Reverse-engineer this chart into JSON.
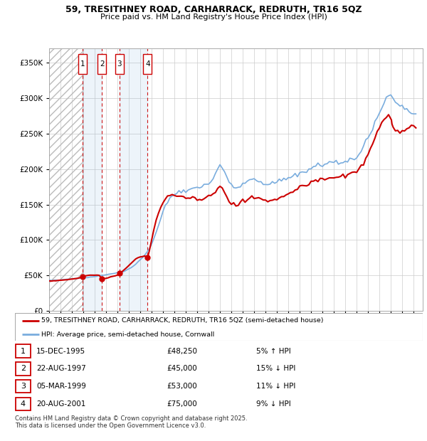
{
  "title1": "59, TRESITHNEY ROAD, CARHARRACK, REDRUTH, TR16 5QZ",
  "title2": "Price paid vs. HM Land Registry's House Price Index (HPI)",
  "sale_dates_num": [
    1995.96,
    1997.64,
    1999.18,
    2001.64
  ],
  "sale_prices": [
    48250,
    45000,
    53000,
    75000
  ],
  "sale_labels": [
    "1",
    "2",
    "3",
    "4"
  ],
  "sale_date_strs": [
    "15-DEC-1995",
    "22-AUG-1997",
    "05-MAR-1999",
    "20-AUG-2001"
  ],
  "sale_price_strs": [
    "£48,250",
    "£45,000",
    "£53,000",
    "£75,000"
  ],
  "sale_hpi_strs": [
    "5% ↑ HPI",
    "15% ↓ HPI",
    "11% ↓ HPI",
    "9% ↓ HPI"
  ],
  "legend_line1": "59, TRESITHNEY ROAD, CARHARRACK, REDRUTH, TR16 5QZ (semi-detached house)",
  "legend_line2": "HPI: Average price, semi-detached house, Cornwall",
  "footer": "Contains HM Land Registry data © Crown copyright and database right 2025.\nThis data is licensed under the Open Government Licence v3.0.",
  "red_color": "#cc0000",
  "blue_color": "#7aadde",
  "grid_color": "#cccccc",
  "ylim": [
    0,
    370000
  ],
  "yticks": [
    0,
    50000,
    100000,
    150000,
    200000,
    250000,
    300000,
    350000
  ],
  "xlim_left": 1993.0,
  "xlim_right": 2025.8,
  "xticks": [
    1993,
    1994,
    1995,
    1996,
    1997,
    1998,
    1999,
    2000,
    2001,
    2002,
    2003,
    2004,
    2005,
    2006,
    2007,
    2008,
    2009,
    2010,
    2011,
    2012,
    2013,
    2014,
    2015,
    2016,
    2017,
    2018,
    2019,
    2020,
    2021,
    2022,
    2023,
    2024,
    2025
  ],
  "hpi_data": [
    [
      1993.0,
      43500
    ],
    [
      1993.2,
      43200
    ],
    [
      1993.4,
      43000
    ],
    [
      1993.6,
      43300
    ],
    [
      1993.8,
      43600
    ],
    [
      1994.0,
      44000
    ],
    [
      1994.2,
      44200
    ],
    [
      1994.4,
      44500
    ],
    [
      1994.6,
      44800
    ],
    [
      1994.8,
      45000
    ],
    [
      1995.0,
      45200
    ],
    [
      1995.2,
      45400
    ],
    [
      1995.4,
      45500
    ],
    [
      1995.6,
      45700
    ],
    [
      1995.8,
      46000
    ],
    [
      1996.0,
      46500
    ],
    [
      1996.2,
      46800
    ],
    [
      1996.4,
      47200
    ],
    [
      1996.6,
      47600
    ],
    [
      1996.8,
      48000
    ],
    [
      1997.0,
      48500
    ],
    [
      1997.2,
      49000
    ],
    [
      1997.4,
      49500
    ],
    [
      1997.6,
      50000
    ],
    [
      1997.8,
      50500
    ],
    [
      1998.0,
      51000
    ],
    [
      1998.2,
      51500
    ],
    [
      1998.4,
      52000
    ],
    [
      1998.6,
      52500
    ],
    [
      1998.8,
      53000
    ],
    [
      1999.0,
      53500
    ],
    [
      1999.2,
      54200
    ],
    [
      1999.4,
      55000
    ],
    [
      1999.6,
      56000
    ],
    [
      1999.8,
      57500
    ],
    [
      2000.0,
      59000
    ],
    [
      2000.2,
      61000
    ],
    [
      2000.4,
      63500
    ],
    [
      2000.6,
      66000
    ],
    [
      2000.8,
      69000
    ],
    [
      2001.0,
      72000
    ],
    [
      2001.2,
      75000
    ],
    [
      2001.4,
      79000
    ],
    [
      2001.6,
      83000
    ],
    [
      2001.8,
      88000
    ],
    [
      2002.0,
      94000
    ],
    [
      2002.2,
      102000
    ],
    [
      2002.4,
      111000
    ],
    [
      2002.6,
      120000
    ],
    [
      2002.8,
      130000
    ],
    [
      2003.0,
      140000
    ],
    [
      2003.2,
      148000
    ],
    [
      2003.4,
      155000
    ],
    [
      2003.6,
      160000
    ],
    [
      2003.8,
      163000
    ],
    [
      2004.0,
      165000
    ],
    [
      2004.2,
      166000
    ],
    [
      2004.4,
      167000
    ],
    [
      2004.6,
      168000
    ],
    [
      2004.8,
      169000
    ],
    [
      2005.0,
      170000
    ],
    [
      2005.2,
      171000
    ],
    [
      2005.4,
      171500
    ],
    [
      2005.6,
      172000
    ],
    [
      2005.8,
      172500
    ],
    [
      2006.0,
      173000
    ],
    [
      2006.2,
      174000
    ],
    [
      2006.4,
      175500
    ],
    [
      2006.6,
      177000
    ],
    [
      2006.8,
      179000
    ],
    [
      2007.0,
      181000
    ],
    [
      2007.2,
      184000
    ],
    [
      2007.4,
      188000
    ],
    [
      2007.6,
      193000
    ],
    [
      2007.8,
      200000
    ],
    [
      2008.0,
      205000
    ],
    [
      2008.2,
      202000
    ],
    [
      2008.4,
      196000
    ],
    [
      2008.6,
      188000
    ],
    [
      2008.8,
      182000
    ],
    [
      2009.0,
      178000
    ],
    [
      2009.2,
      175000
    ],
    [
      2009.4,
      174000
    ],
    [
      2009.6,
      175000
    ],
    [
      2009.8,
      177000
    ],
    [
      2010.0,
      179000
    ],
    [
      2010.2,
      181000
    ],
    [
      2010.4,
      183000
    ],
    [
      2010.6,
      184000
    ],
    [
      2010.8,
      184500
    ],
    [
      2011.0,
      185000
    ],
    [
      2011.2,
      184000
    ],
    [
      2011.4,
      183000
    ],
    [
      2011.6,
      182500
    ],
    [
      2011.8,
      182000
    ],
    [
      2012.0,
      181500
    ],
    [
      2012.2,
      181000
    ],
    [
      2012.4,
      181000
    ],
    [
      2012.6,
      181500
    ],
    [
      2012.8,
      182000
    ],
    [
      2013.0,
      182500
    ],
    [
      2013.2,
      183000
    ],
    [
      2013.4,
      184000
    ],
    [
      2013.6,
      185500
    ],
    [
      2013.8,
      187000
    ],
    [
      2014.0,
      188500
    ],
    [
      2014.2,
      190000
    ],
    [
      2014.4,
      191000
    ],
    [
      2014.6,
      192000
    ],
    [
      2014.8,
      193000
    ],
    [
      2015.0,
      194000
    ],
    [
      2015.2,
      195500
    ],
    [
      2015.4,
      197000
    ],
    [
      2015.6,
      198500
    ],
    [
      2015.8,
      200000
    ],
    [
      2016.0,
      201500
    ],
    [
      2016.2,
      203000
    ],
    [
      2016.4,
      204000
    ],
    [
      2016.6,
      205000
    ],
    [
      2016.8,
      205500
    ],
    [
      2017.0,
      206000
    ],
    [
      2017.2,
      206500
    ],
    [
      2017.4,
      207000
    ],
    [
      2017.6,
      207500
    ],
    [
      2017.8,
      208000
    ],
    [
      2018.0,
      208500
    ],
    [
      2018.2,
      209000
    ],
    [
      2018.4,
      209500
    ],
    [
      2018.6,
      210000
    ],
    [
      2018.8,
      211000
    ],
    [
      2019.0,
      212000
    ],
    [
      2019.2,
      213000
    ],
    [
      2019.4,
      214000
    ],
    [
      2019.6,
      215000
    ],
    [
      2019.8,
      216500
    ],
    [
      2020.0,
      218000
    ],
    [
      2020.2,
      220000
    ],
    [
      2020.4,
      223000
    ],
    [
      2020.6,
      228000
    ],
    [
      2020.8,
      235000
    ],
    [
      2021.0,
      243000
    ],
    [
      2021.2,
      252000
    ],
    [
      2021.4,
      260000
    ],
    [
      2021.6,
      267000
    ],
    [
      2021.8,
      274000
    ],
    [
      2022.0,
      280000
    ],
    [
      2022.2,
      287000
    ],
    [
      2022.4,
      293000
    ],
    [
      2022.6,
      299000
    ],
    [
      2022.8,
      303000
    ],
    [
      2023.0,
      305000
    ],
    [
      2023.2,
      302000
    ],
    [
      2023.4,
      298000
    ],
    [
      2023.6,
      293000
    ],
    [
      2023.8,
      289000
    ],
    [
      2024.0,
      286000
    ],
    [
      2024.2,
      284000
    ],
    [
      2024.4,
      283000
    ],
    [
      2024.6,
      282000
    ],
    [
      2024.8,
      281000
    ],
    [
      2025.0,
      280000
    ],
    [
      2025.2,
      279500
    ]
  ],
  "pp_data": [
    [
      1993.0,
      42000
    ],
    [
      1993.2,
      42200
    ],
    [
      1993.4,
      42400
    ],
    [
      1993.6,
      42600
    ],
    [
      1993.8,
      42900
    ],
    [
      1994.0,
      43200
    ],
    [
      1994.2,
      43500
    ],
    [
      1994.4,
      43800
    ],
    [
      1994.6,
      44100
    ],
    [
      1994.8,
      44500
    ],
    [
      1995.0,
      45000
    ],
    [
      1995.2,
      45500
    ],
    [
      1995.6,
      46500
    ],
    [
      1995.8,
      47500
    ],
    [
      1995.96,
      48250
    ],
    [
      1996.0,
      49000
    ],
    [
      1996.2,
      49500
    ],
    [
      1996.4,
      50000
    ],
    [
      1996.6,
      50200
    ],
    [
      1996.8,
      50300
    ],
    [
      1997.0,
      50400
    ],
    [
      1997.2,
      50300
    ],
    [
      1997.4,
      50100
    ],
    [
      1997.64,
      45000
    ],
    [
      1997.8,
      45500
    ],
    [
      1998.0,
      46200
    ],
    [
      1998.2,
      47000
    ],
    [
      1998.4,
      47800
    ],
    [
      1998.6,
      48500
    ],
    [
      1998.8,
      49500
    ],
    [
      1999.0,
      50500
    ],
    [
      1999.1,
      51500
    ],
    [
      1999.18,
      53000
    ],
    [
      1999.4,
      55500
    ],
    [
      1999.6,
      58000
    ],
    [
      1999.8,
      61000
    ],
    [
      2000.0,
      64000
    ],
    [
      2000.2,
      67000
    ],
    [
      2000.4,
      70000
    ],
    [
      2000.6,
      73000
    ],
    [
      2000.8,
      75000
    ],
    [
      2001.0,
      76000
    ],
    [
      2001.2,
      77000
    ],
    [
      2001.4,
      77500
    ],
    [
      2001.64,
      75000
    ],
    [
      2001.8,
      85000
    ],
    [
      2002.0,
      100000
    ],
    [
      2002.2,
      115000
    ],
    [
      2002.4,
      128000
    ],
    [
      2002.6,
      138000
    ],
    [
      2002.8,
      146000
    ],
    [
      2003.0,
      153000
    ],
    [
      2003.2,
      158000
    ],
    [
      2003.4,
      161000
    ],
    [
      2003.6,
      162000
    ],
    [
      2003.8,
      162500
    ],
    [
      2004.0,
      163000
    ],
    [
      2004.2,
      162500
    ],
    [
      2004.4,
      162000
    ],
    [
      2004.6,
      161500
    ],
    [
      2004.8,
      161000
    ],
    [
      2005.0,
      160000
    ],
    [
      2005.2,
      159000
    ],
    [
      2005.4,
      158500
    ],
    [
      2005.6,
      158000
    ],
    [
      2005.8,
      157500
    ],
    [
      2006.0,
      157000
    ],
    [
      2006.2,
      157500
    ],
    [
      2006.4,
      158000
    ],
    [
      2006.6,
      158800
    ],
    [
      2006.8,
      160000
    ],
    [
      2007.0,
      161500
    ],
    [
      2007.2,
      163500
    ],
    [
      2007.4,
      166000
    ],
    [
      2007.6,
      169500
    ],
    [
      2007.8,
      173000
    ],
    [
      2008.0,
      177000
    ],
    [
      2008.2,
      174000
    ],
    [
      2008.4,
      168000
    ],
    [
      2008.6,
      161000
    ],
    [
      2008.8,
      156000
    ],
    [
      2009.0,
      152000
    ],
    [
      2009.2,
      150000
    ],
    [
      2009.4,
      149500
    ],
    [
      2009.6,
      150000
    ],
    [
      2009.8,
      151500
    ],
    [
      2010.0,
      153000
    ],
    [
      2010.2,
      155000
    ],
    [
      2010.4,
      157000
    ],
    [
      2010.6,
      158500
    ],
    [
      2010.8,
      159500
    ],
    [
      2011.0,
      160000
    ],
    [
      2011.2,
      159500
    ],
    [
      2011.4,
      158500
    ],
    [
      2011.6,
      157500
    ],
    [
      2011.8,
      157000
    ],
    [
      2012.0,
      156500
    ],
    [
      2012.2,
      156000
    ],
    [
      2012.4,
      156000
    ],
    [
      2012.6,
      156500
    ],
    [
      2012.8,
      157000
    ],
    [
      2013.0,
      157500
    ],
    [
      2013.2,
      158500
    ],
    [
      2013.4,
      159500
    ],
    [
      2013.6,
      161000
    ],
    [
      2013.8,
      163000
    ],
    [
      2014.0,
      165000
    ],
    [
      2014.2,
      167000
    ],
    [
      2014.4,
      168500
    ],
    [
      2014.6,
      170000
    ],
    [
      2014.8,
      171500
    ],
    [
      2015.0,
      173000
    ],
    [
      2015.2,
      174500
    ],
    [
      2015.4,
      176000
    ],
    [
      2015.6,
      177500
    ],
    [
      2015.8,
      179500
    ],
    [
      2016.0,
      181000
    ],
    [
      2016.2,
      182500
    ],
    [
      2016.4,
      184000
    ],
    [
      2016.6,
      185000
    ],
    [
      2016.8,
      185500
    ],
    [
      2017.0,
      186000
    ],
    [
      2017.2,
      186500
    ],
    [
      2017.4,
      187000
    ],
    [
      2017.6,
      187200
    ],
    [
      2017.8,
      187500
    ],
    [
      2018.0,
      188000
    ],
    [
      2018.2,
      188500
    ],
    [
      2018.4,
      189000
    ],
    [
      2018.6,
      189500
    ],
    [
      2018.8,
      190500
    ],
    [
      2019.0,
      191500
    ],
    [
      2019.2,
      192500
    ],
    [
      2019.4,
      193500
    ],
    [
      2019.6,
      195000
    ],
    [
      2019.8,
      196500
    ],
    [
      2020.0,
      198000
    ],
    [
      2020.2,
      200000
    ],
    [
      2020.4,
      203000
    ],
    [
      2020.6,
      208000
    ],
    [
      2020.8,
      214000
    ],
    [
      2021.0,
      221000
    ],
    [
      2021.2,
      229000
    ],
    [
      2021.4,
      237000
    ],
    [
      2021.6,
      244000
    ],
    [
      2021.8,
      251000
    ],
    [
      2022.0,
      257000
    ],
    [
      2022.2,
      263000
    ],
    [
      2022.4,
      268000
    ],
    [
      2022.6,
      272000
    ],
    [
      2022.8,
      274000
    ],
    [
      2023.0,
      270000
    ],
    [
      2023.05,
      268000
    ],
    [
      2023.1,
      264000
    ],
    [
      2023.2,
      259000
    ],
    [
      2023.4,
      255000
    ],
    [
      2023.6,
      253000
    ],
    [
      2023.8,
      252500
    ],
    [
      2024.0,
      253000
    ],
    [
      2024.2,
      254000
    ],
    [
      2024.4,
      255000
    ],
    [
      2024.6,
      257000
    ],
    [
      2024.8,
      259000
    ],
    [
      2025.0,
      260000
    ],
    [
      2025.2,
      260500
    ]
  ]
}
